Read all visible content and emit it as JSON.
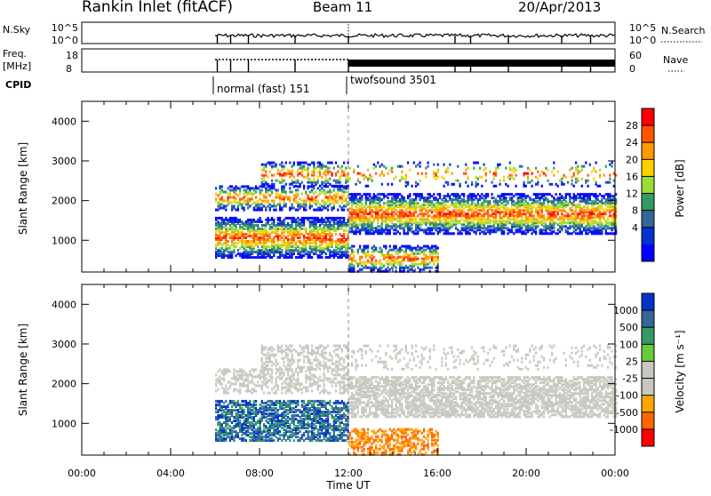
{
  "header": {
    "station": "Rankin Inlet (fitACF)",
    "beam": "Beam 11",
    "date": "20/Apr/2013"
  },
  "strips": {
    "nsky": {
      "left_label": "N.Sky",
      "left_ticks": [
        "10^5",
        "10^0"
      ],
      "right_ticks": [
        "10^5",
        "10^0"
      ],
      "right_label": "N.Search"
    },
    "freq": {
      "left_label_1": "Freq.",
      "left_label_2": "[MHz]",
      "left_ticks": [
        "18",
        "8"
      ],
      "right_ticks": [
        "60",
        "0"
      ],
      "right_label": "Nave"
    },
    "cpid": {
      "label": "CPID",
      "modes": [
        "normal (fast) 151",
        "twofsound 3501"
      ]
    }
  },
  "chart_data": [
    {
      "type": "heatmap",
      "name": "power-panel",
      "ylabel": "Slant Range [km]",
      "ylim": [
        200,
        4500
      ],
      "y_ticks": [
        1000,
        2000,
        3000,
        4000
      ],
      "xlim": [
        0,
        24
      ],
      "x_ticks": [
        "00:00",
        "04:00",
        "08:00",
        "12:00",
        "16:00",
        "20:00",
        "00:00"
      ],
      "colorbar": {
        "label": "Power [dB]",
        "ticks": [
          "28",
          "24",
          "20",
          "16",
          "12",
          "8",
          "4"
        ],
        "colors": [
          "#ff0000",
          "#ff5500",
          "#ff9a00",
          "#ffd000",
          "#99dd33",
          "#339966",
          "#336699",
          "#0033cc",
          "#0000ff"
        ]
      }
    },
    {
      "type": "heatmap",
      "name": "velocity-panel",
      "ylabel": "Slant Range [km]",
      "ylim": [
        200,
        4500
      ],
      "y_ticks": [
        1000,
        2000,
        3000,
        4000
      ],
      "xlim": [
        0,
        24
      ],
      "x_ticks": [
        "00:00",
        "04:00",
        "08:00",
        "12:00",
        "16:00",
        "20:00",
        "00:00"
      ],
      "xlabel": "Time UT",
      "colorbar": {
        "label": "Velocity [m s⁻¹]",
        "ticks": [
          "1000",
          "500",
          "100",
          "25",
          "-25",
          "-100",
          "-500",
          "-1000"
        ],
        "colors": [
          "#0033cc",
          "#336699",
          "#339966",
          "#66cc33",
          "#c8c8c0",
          "#c8c8c0",
          "#ffa500",
          "#ff6600",
          "#ff0000"
        ]
      }
    }
  ]
}
